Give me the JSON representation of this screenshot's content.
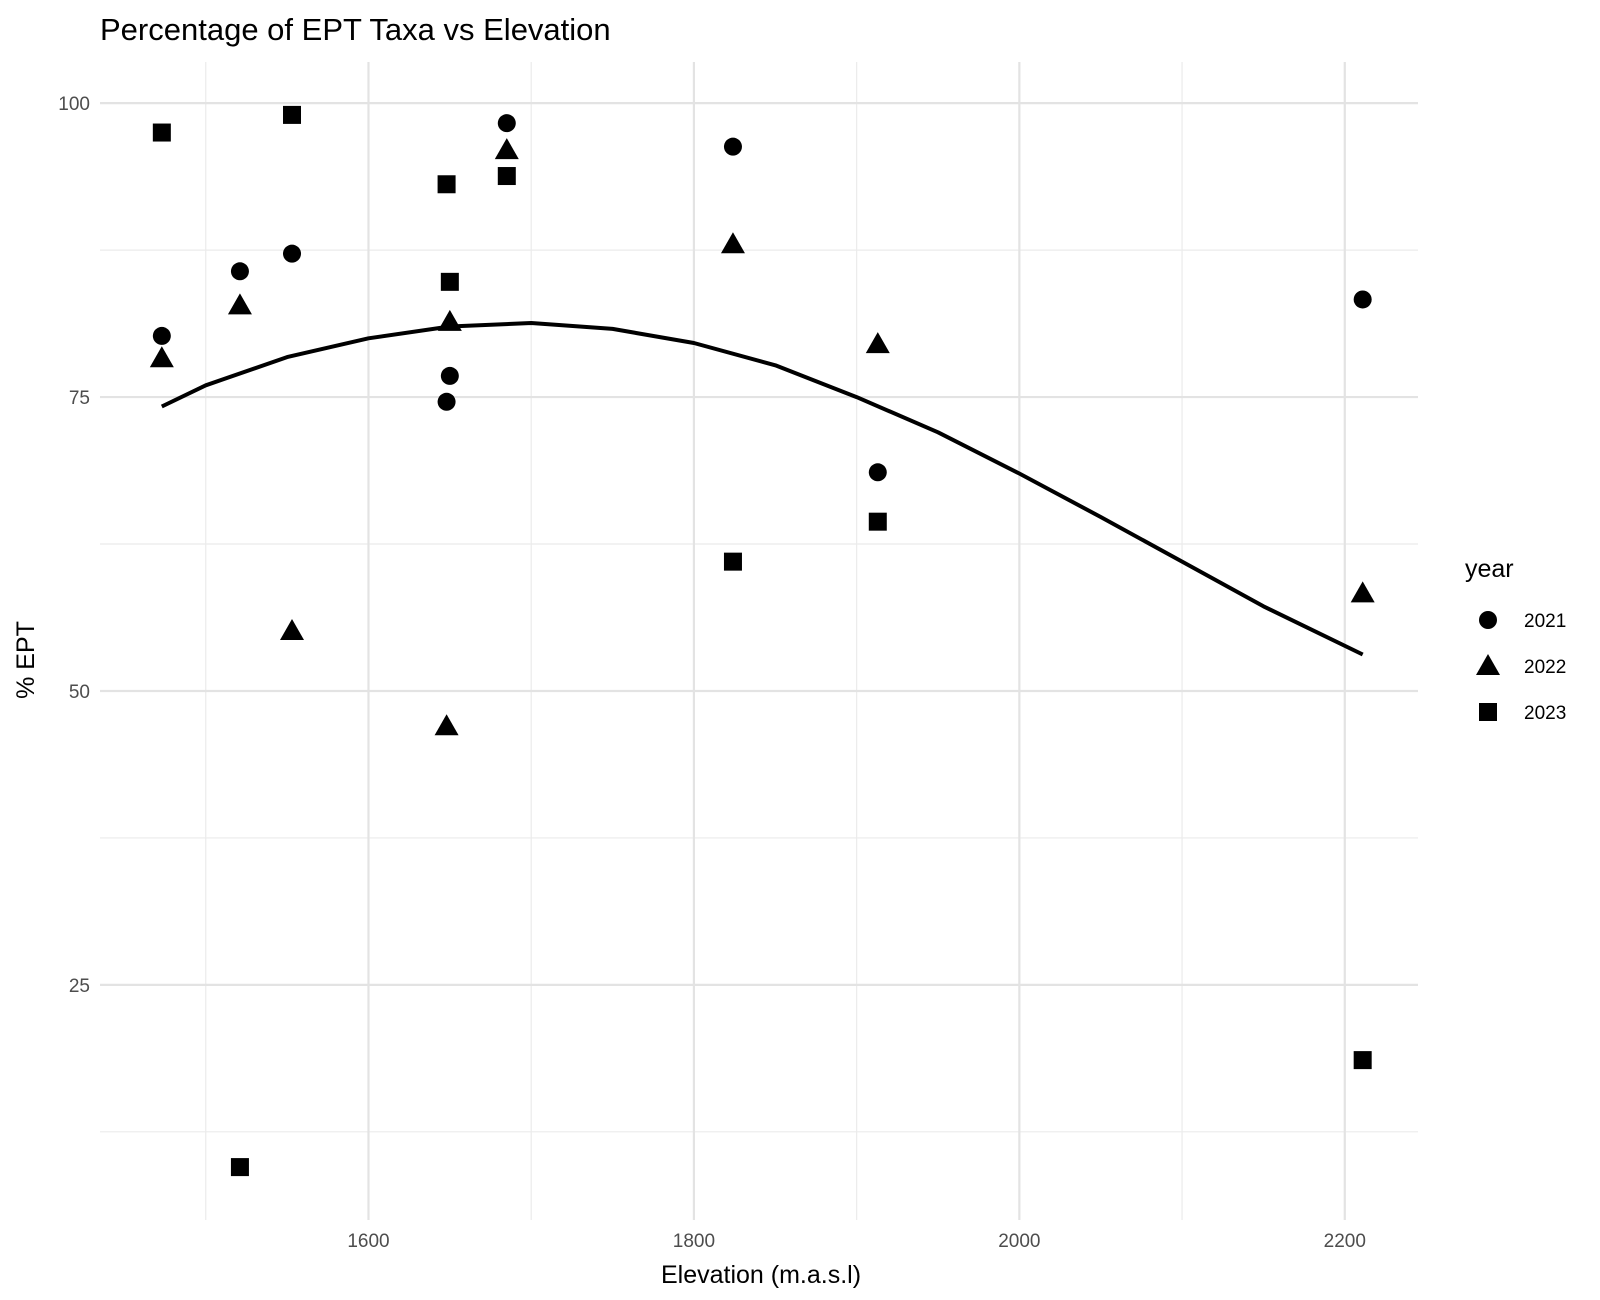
{
  "chart_data": {
    "type": "scatter",
    "title": "Percentage of EPT Taxa vs Elevation",
    "xlabel": "Elevation (m.a.s.l)",
    "ylabel": "% EPT",
    "xlim": [
      1435,
      2245
    ],
    "ylim": [
      5,
      103.5
    ],
    "x_ticks": [
      1600,
      1800,
      2000,
      2200
    ],
    "y_ticks": [
      25,
      50,
      75,
      100
    ],
    "x_minor": [
      1500,
      1700,
      1900,
      2100
    ],
    "y_minor": [
      12.5,
      37.5,
      62.5,
      87.5
    ],
    "grid": true,
    "legend": {
      "title": "year",
      "position": "right"
    },
    "series": [
      {
        "name": "2021",
        "shape": "circle",
        "points": [
          {
            "x": 1473,
            "y": 80.2
          },
          {
            "x": 1521,
            "y": 85.7
          },
          {
            "x": 1553,
            "y": 87.2
          },
          {
            "x": 1648,
            "y": 74.6
          },
          {
            "x": 1650,
            "y": 76.8
          },
          {
            "x": 1685,
            "y": 98.3
          },
          {
            "x": 1824,
            "y": 96.3
          },
          {
            "x": 1913,
            "y": 68.6
          },
          {
            "x": 2211,
            "y": 83.3
          }
        ]
      },
      {
        "name": "2022",
        "shape": "triangle",
        "points": [
          {
            "x": 1473,
            "y": 78.3
          },
          {
            "x": 1521,
            "y": 82.8
          },
          {
            "x": 1553,
            "y": 55.1
          },
          {
            "x": 1648,
            "y": 47.0
          },
          {
            "x": 1650,
            "y": 81.4
          },
          {
            "x": 1685,
            "y": 96.0
          },
          {
            "x": 1824,
            "y": 88.0
          },
          {
            "x": 1913,
            "y": 79.5
          },
          {
            "x": 2211,
            "y": 58.3
          }
        ]
      },
      {
        "name": "2023",
        "shape": "square",
        "points": [
          {
            "x": 1473,
            "y": 97.5
          },
          {
            "x": 1521,
            "y": 9.5
          },
          {
            "x": 1553,
            "y": 99.0
          },
          {
            "x": 1648,
            "y": 93.1
          },
          {
            "x": 1650,
            "y": 84.8
          },
          {
            "x": 1685,
            "y": 93.8
          },
          {
            "x": 1824,
            "y": 61.0
          },
          {
            "x": 1913,
            "y": 64.4
          },
          {
            "x": 2211,
            "y": 18.6
          }
        ]
      }
    ],
    "trend": {
      "type": "smooth",
      "color": "#000000",
      "points": [
        {
          "x": 1473,
          "y": 74.2
        },
        {
          "x": 1500,
          "y": 76.0
        },
        {
          "x": 1550,
          "y": 78.4
        },
        {
          "x": 1600,
          "y": 80.0
        },
        {
          "x": 1650,
          "y": 81.0
        },
        {
          "x": 1700,
          "y": 81.3
        },
        {
          "x": 1750,
          "y": 80.8
        },
        {
          "x": 1800,
          "y": 79.6
        },
        {
          "x": 1850,
          "y": 77.7
        },
        {
          "x": 1900,
          "y": 75.0
        },
        {
          "x": 1950,
          "y": 72.0
        },
        {
          "x": 2000,
          "y": 68.5
        },
        {
          "x": 2050,
          "y": 64.8
        },
        {
          "x": 2100,
          "y": 61.0
        },
        {
          "x": 2150,
          "y": 57.2
        },
        {
          "x": 2211,
          "y": 53.1
        }
      ]
    }
  }
}
